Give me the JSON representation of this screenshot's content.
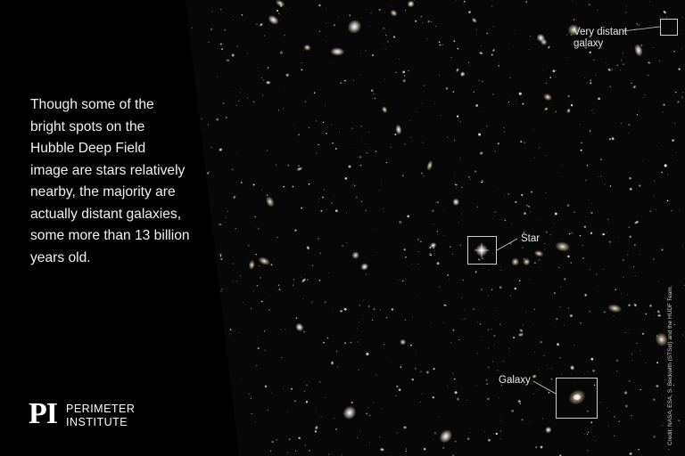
{
  "caption": {
    "lines": [
      "Though some of the",
      "bright spots on the",
      "Hubble Deep Field",
      "image are stars relatively",
      "nearby, the majority are",
      "actually distant galaxies,",
      "some more than 13 billion",
      "years old."
    ]
  },
  "logo": {
    "mark": "PI",
    "line1": "PERIMETER",
    "line2": "INSTITUTE"
  },
  "annotations": {
    "very_distant_galaxy": "Very distant galaxy",
    "star": "Star",
    "galaxy": "Galaxy"
  },
  "credit": "Credit: NASA, ESA, S. Beckwith (STScI) and the HUDF Team.",
  "colors": {
    "background": "#000000",
    "text": "#f2f2f2",
    "annotation": "#cfcfcf"
  }
}
